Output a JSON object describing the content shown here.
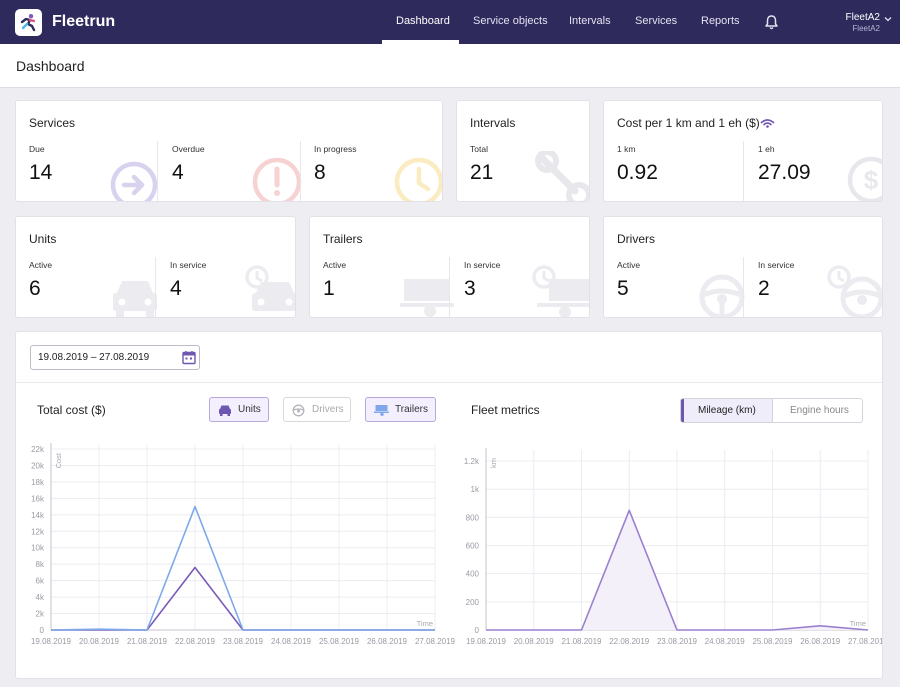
{
  "app": {
    "brand": "Fleetrun",
    "nav": [
      "Dashboard",
      "Service objects",
      "Intervals",
      "Services",
      "Reports"
    ],
    "active_nav": "Dashboard",
    "account_name": "FleetA2",
    "account_sub": "FleetA2"
  },
  "page": {
    "title": "Dashboard"
  },
  "cards": {
    "services": {
      "title": "Services",
      "metrics": [
        {
          "label": "Due",
          "value": "14",
          "icon": "arrow-circle-icon",
          "color": "#c6bfe6"
        },
        {
          "label": "Overdue",
          "value": "4",
          "icon": "alert-circle-icon",
          "color": "#f4c4c4"
        },
        {
          "label": "In progress",
          "value": "8",
          "icon": "clock-icon",
          "color": "#f8e2a8"
        }
      ]
    },
    "intervals": {
      "title": "Intervals",
      "metrics": [
        {
          "label": "Total",
          "value": "21",
          "icon": "wrench-icon"
        }
      ]
    },
    "cost": {
      "title": "Cost per 1 km and 1 eh ($)",
      "title_icon": "signal-icon",
      "metrics": [
        {
          "label": "1 km",
          "value": "0.92"
        },
        {
          "label": "1 eh",
          "value": "27.09",
          "icon": "dollar-circle-icon"
        }
      ]
    },
    "units": {
      "title": "Units",
      "metrics": [
        {
          "label": "Active",
          "value": "6",
          "icon": "car-icon"
        },
        {
          "label": "In service",
          "value": "4",
          "icon": "car-clock-icon"
        }
      ]
    },
    "trailers": {
      "title": "Trailers",
      "metrics": [
        {
          "label": "Active",
          "value": "1",
          "icon": "trailer-icon"
        },
        {
          "label": "In service",
          "value": "3",
          "icon": "trailer-clock-icon"
        }
      ]
    },
    "drivers": {
      "title": "Drivers",
      "metrics": [
        {
          "label": "Active",
          "value": "5",
          "icon": "steering-wheel-icon"
        },
        {
          "label": "In service",
          "value": "2",
          "icon": "steering-wheel-clock-icon"
        }
      ]
    }
  },
  "filters": {
    "date_range": "19.08.2019 – 27.08.2019"
  },
  "total_cost": {
    "title": "Total cost ($)",
    "toggles": [
      {
        "label": "Units",
        "on": true,
        "icon": "car-icon"
      },
      {
        "label": "Drivers",
        "on": false,
        "icon": "steering-wheel-icon"
      },
      {
        "label": "Trailers",
        "on": true,
        "icon": "trailer-icon"
      }
    ]
  },
  "fleet_metrics": {
    "title": "Fleet metrics",
    "modes": [
      "Mileage (km)",
      "Engine hours"
    ],
    "active_mode": "Mileage (km)"
  },
  "chart_data": [
    {
      "type": "line",
      "title": "Total cost ($)",
      "ylabel": "Cost",
      "xlabel": "Time",
      "ylim": [
        0,
        22000
      ],
      "yticks": [
        "0",
        "2k",
        "4k",
        "6k",
        "8k",
        "10k",
        "12k",
        "14k",
        "16k",
        "18k",
        "20k",
        "22k"
      ],
      "x": [
        "19.08.2019",
        "20.08.2019",
        "21.08.2019",
        "22.08.2019",
        "23.08.2019",
        "24.08.2019",
        "25.08.2019",
        "26.08.2019",
        "27.08.2019"
      ],
      "series": [
        {
          "name": "Units",
          "color": "#7a5bb8",
          "values": [
            0,
            0,
            0,
            7600,
            0,
            0,
            0,
            0,
            0
          ]
        },
        {
          "name": "Trailers",
          "color": "#7ea8ea",
          "values": [
            0,
            100,
            0,
            15000,
            0,
            0,
            0,
            0,
            0
          ]
        }
      ],
      "grid": true
    },
    {
      "type": "area",
      "title": "Fleet metrics",
      "ylabel": "km",
      "xlabel": "Time",
      "ylim": [
        0,
        1250
      ],
      "yticks": [
        "0",
        "200",
        "400",
        "600",
        "800",
        "1k",
        "1.2k"
      ],
      "x": [
        "19.08.2019",
        "20.08.2019",
        "21.08.2019",
        "22.08.2019",
        "23.08.2019",
        "24.08.2019",
        "25.08.2019",
        "26.08.2019",
        "27.08.2019"
      ],
      "series": [
        {
          "color": "#9b7fcf",
          "values": [
            0,
            0,
            0,
            850,
            0,
            0,
            0,
            30,
            0
          ]
        }
      ],
      "grid": true
    }
  ]
}
